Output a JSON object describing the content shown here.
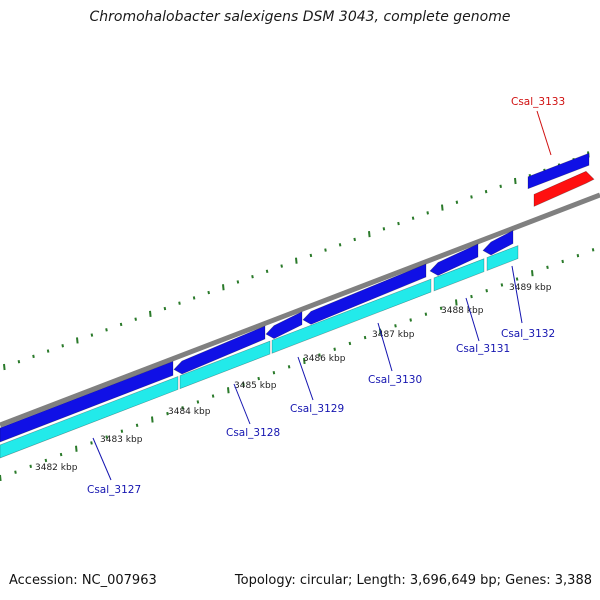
{
  "title": "Chromohalobacter salexigens DSM 3043, complete genome",
  "footer": {
    "accession": "Accession: NC_007963",
    "summary": "Topology: circular; Length: 3,696,649 bp; Genes: 3,388"
  },
  "colors": {
    "backbone": "#808080",
    "forward_gene": "#1010e6",
    "reverse_gene": "#ff1010",
    "cds": "#22eaea",
    "tick": "#2a7a2a",
    "gene_label": "#1515b0",
    "highlight_label": "#d01010",
    "kbp_label": "#222222"
  },
  "scale_labels": [
    "3482 kbp",
    "3483 kbp",
    "3484 kbp",
    "3485 kbp",
    "3486 kbp",
    "3487 kbp",
    "3488 kbp",
    "3489 kbp"
  ],
  "gene_labels": [
    {
      "text": "Csal_3127",
      "highlight": false
    },
    {
      "text": "Csal_3128",
      "highlight": false
    },
    {
      "text": "Csal_3129",
      "highlight": false
    },
    {
      "text": "Csal_3130",
      "highlight": false
    },
    {
      "text": "Csal_3131",
      "highlight": false
    },
    {
      "text": "Csal_3132",
      "highlight": false
    },
    {
      "text": "Csal_3133",
      "highlight": true
    }
  ]
}
